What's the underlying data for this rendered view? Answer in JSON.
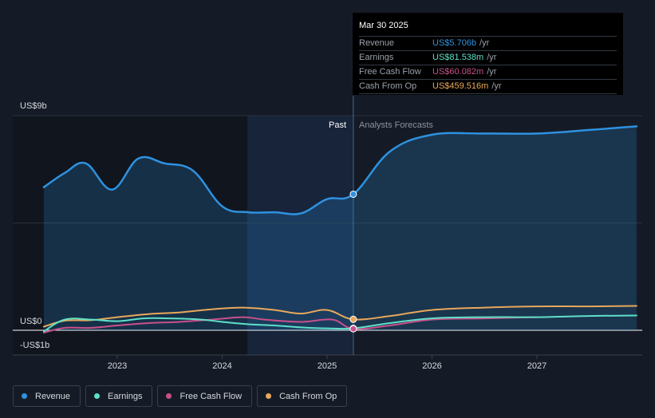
{
  "chart_data": {
    "type": "line",
    "x_ticks": [
      "2023",
      "2024",
      "2025",
      "2026",
      "2027"
    ],
    "y_labels": {
      "top": "US$9b",
      "zero": "US$0",
      "bottom": "-US$1b"
    },
    "ylim": [
      -1,
      9
    ],
    "divider_labels": {
      "past": "Past",
      "forecast": "Analysts Forecasts"
    },
    "series": [
      {
        "name": "Revenue",
        "color": "#2e92e0",
        "fill": true,
        "points": [
          [
            2022.3,
            6.0
          ],
          [
            2022.5,
            6.6
          ],
          [
            2022.7,
            7.0
          ],
          [
            2022.95,
            5.9
          ],
          [
            2023.2,
            7.2
          ],
          [
            2023.45,
            7.0
          ],
          [
            2023.72,
            6.7
          ],
          [
            2024.0,
            5.2
          ],
          [
            2024.25,
            4.95
          ],
          [
            2024.5,
            4.95
          ],
          [
            2024.75,
            4.9
          ],
          [
            2025.0,
            5.5
          ],
          [
            2025.25,
            5.706
          ],
          [
            2025.6,
            7.5
          ],
          [
            2026.0,
            8.2
          ],
          [
            2026.5,
            8.25
          ],
          [
            2027.0,
            8.25
          ],
          [
            2027.5,
            8.4
          ],
          [
            2027.95,
            8.55
          ]
        ]
      },
      {
        "name": "Earnings",
        "color": "#5ee0c8",
        "fill": false,
        "points": [
          [
            2022.3,
            -0.05
          ],
          [
            2022.5,
            0.45
          ],
          [
            2022.75,
            0.45
          ],
          [
            2023.0,
            0.38
          ],
          [
            2023.25,
            0.5
          ],
          [
            2023.5,
            0.5
          ],
          [
            2023.8,
            0.45
          ],
          [
            2024.0,
            0.35
          ],
          [
            2024.25,
            0.25
          ],
          [
            2024.5,
            0.2
          ],
          [
            2024.75,
            0.12
          ],
          [
            2025.0,
            0.08
          ],
          [
            2025.25,
            0.08154
          ],
          [
            2025.6,
            0.3
          ],
          [
            2026.0,
            0.5
          ],
          [
            2026.5,
            0.55
          ],
          [
            2027.0,
            0.55
          ],
          [
            2027.5,
            0.6
          ],
          [
            2027.95,
            0.62
          ]
        ]
      },
      {
        "name": "Free Cash Flow",
        "color": "#c8508a",
        "fill": false,
        "points": [
          [
            2022.3,
            -0.1
          ],
          [
            2022.5,
            0.1
          ],
          [
            2022.75,
            0.1
          ],
          [
            2023.0,
            0.2
          ],
          [
            2023.3,
            0.3
          ],
          [
            2023.6,
            0.35
          ],
          [
            2023.9,
            0.45
          ],
          [
            2024.2,
            0.55
          ],
          [
            2024.4,
            0.45
          ],
          [
            2024.75,
            0.35
          ],
          [
            2025.05,
            0.45
          ],
          [
            2025.25,
            0.06008
          ],
          [
            2025.6,
            0.2
          ],
          [
            2026.0,
            0.45
          ],
          [
            2026.5,
            0.5
          ],
          [
            2027.0,
            0.55
          ]
        ]
      },
      {
        "name": "Cash From Op",
        "color": "#e8a85a",
        "fill": false,
        "points": [
          [
            2022.3,
            0.15
          ],
          [
            2022.5,
            0.4
          ],
          [
            2022.75,
            0.42
          ],
          [
            2023.0,
            0.55
          ],
          [
            2023.3,
            0.68
          ],
          [
            2023.6,
            0.75
          ],
          [
            2023.9,
            0.88
          ],
          [
            2024.2,
            0.95
          ],
          [
            2024.5,
            0.85
          ],
          [
            2024.75,
            0.7
          ],
          [
            2025.0,
            0.85
          ],
          [
            2025.25,
            0.4595
          ],
          [
            2025.6,
            0.6
          ],
          [
            2026.0,
            0.85
          ],
          [
            2026.5,
            0.95
          ],
          [
            2027.0,
            1.0
          ],
          [
            2027.5,
            1.0
          ],
          [
            2027.95,
            1.02
          ]
        ]
      }
    ],
    "current_x": 2025.25,
    "grid": true
  },
  "tooltip": {
    "date": "Mar 30 2025",
    "rows": [
      {
        "label": "Revenue",
        "value": "US$5.706b",
        "unit": "/yr",
        "color": "#2e92e0"
      },
      {
        "label": "Earnings",
        "value": "US$81.538m",
        "unit": "/yr",
        "color": "#5ee0c8"
      },
      {
        "label": "Free Cash Flow",
        "value": "US$60.082m",
        "unit": "/yr",
        "color": "#c8508a"
      },
      {
        "label": "Cash From Op",
        "value": "US$459.516m",
        "unit": "/yr",
        "color": "#e8a85a"
      }
    ]
  },
  "legend": [
    {
      "label": "Revenue",
      "color": "#2e92e0"
    },
    {
      "label": "Earnings",
      "color": "#5ee0c8"
    },
    {
      "label": "Free Cash Flow",
      "color": "#c8508a"
    },
    {
      "label": "Cash From Op",
      "color": "#e8a85a"
    }
  ]
}
